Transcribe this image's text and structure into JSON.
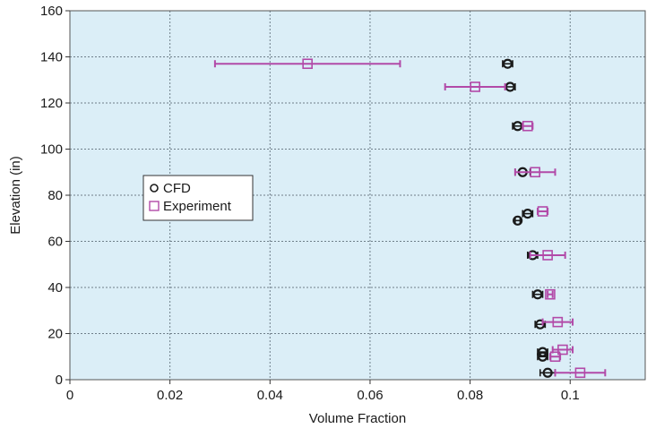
{
  "chart_data": {
    "type": "scatter",
    "xlabel": "Volume Fraction",
    "ylabel": "Elevation (in)",
    "xlim": [
      0,
      0.115
    ],
    "ylim": [
      0,
      160
    ],
    "x_ticks": [
      0,
      0.02,
      0.04,
      0.06,
      0.08,
      0.1
    ],
    "x_tick_labels": [
      "0",
      "0.02",
      "0.04",
      "0.06",
      "0.08",
      "0.1"
    ],
    "y_ticks": [
      0,
      20,
      40,
      60,
      80,
      100,
      120,
      140,
      160
    ],
    "y_tick_labels": [
      "0",
      "20",
      "40",
      "60",
      "80",
      "100",
      "120",
      "140",
      "160"
    ],
    "grid": true,
    "plot_background": "#dbeef7",
    "legend": {
      "placement": "center-left",
      "entries": [
        {
          "label": "CFD",
          "marker": "open-circle",
          "color": "#1a1a1a"
        },
        {
          "label": "Experiment",
          "marker": "open-square",
          "color": "#b24aa8"
        }
      ]
    },
    "series": [
      {
        "name": "CFD",
        "color": "#1a1a1a",
        "points": [
          {
            "x": 0.0875,
            "y": 137,
            "xerr": 0.001
          },
          {
            "x": 0.088,
            "y": 127,
            "xerr": 0.001
          },
          {
            "x": 0.0895,
            "y": 110,
            "xerr": 0.001
          },
          {
            "x": 0.0905,
            "y": 90,
            "xerr": 0.0015
          },
          {
            "x": 0.0915,
            "y": 72,
            "xerr": 0.001
          },
          {
            "x": 0.0895,
            "y": 69,
            "xerr": 0.0005
          },
          {
            "x": 0.0925,
            "y": 54,
            "xerr": 0.001
          },
          {
            "x": 0.0935,
            "y": 37,
            "xerr": 0.001
          },
          {
            "x": 0.094,
            "y": 24,
            "xerr": 0.001
          },
          {
            "x": 0.0945,
            "y": 12,
            "xerr": 0.001
          },
          {
            "x": 0.0945,
            "y": 10,
            "xerr": 0.001
          },
          {
            "x": 0.0955,
            "y": 3,
            "xerr": 0.0015
          }
        ]
      },
      {
        "name": "Experiment",
        "color": "#b24aa8",
        "points": [
          {
            "x": 0.0475,
            "y": 137,
            "xerr": 0.0185
          },
          {
            "x": 0.081,
            "y": 127,
            "xerr": 0.006
          },
          {
            "x": 0.0915,
            "y": 110,
            "xerr": 0.001
          },
          {
            "x": 0.093,
            "y": 90,
            "xerr": 0.004
          },
          {
            "x": 0.0945,
            "y": 73,
            "xerr": 0.001
          },
          {
            "x": 0.0955,
            "y": 54,
            "xerr": 0.0035
          },
          {
            "x": 0.096,
            "y": 37,
            "xerr": 0.0005
          },
          {
            "x": 0.0975,
            "y": 25,
            "xerr": 0.003
          },
          {
            "x": 0.0985,
            "y": 13,
            "xerr": 0.002
          },
          {
            "x": 0.097,
            "y": 10,
            "xerr": 0.001
          },
          {
            "x": 0.102,
            "y": 3,
            "xerr": 0.005
          }
        ]
      }
    ]
  }
}
